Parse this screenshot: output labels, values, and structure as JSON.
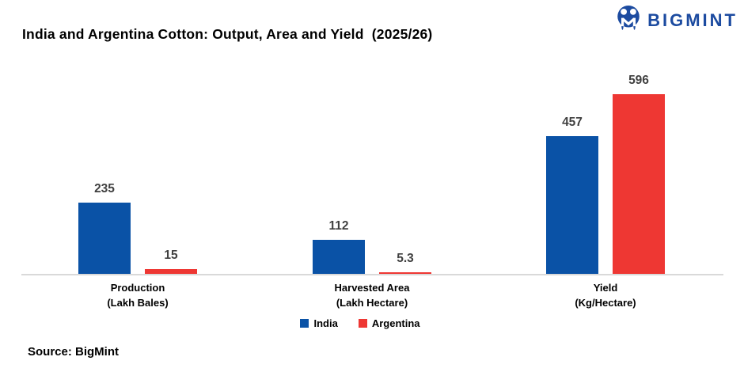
{
  "header": {
    "title": "India and Argentina Cotton: Output, Area and Yield  (2025/26)",
    "logo_text": "BIGMINT"
  },
  "colors": {
    "india_blue": "#0a52a6",
    "argentina_red": "#ee3733",
    "logo_blue": "#1c4ba0",
    "axis_line_gray": "#d9d9d9",
    "value_label_gray": "#404040"
  },
  "chart_data": {
    "type": "bar",
    "title": "India and Argentina Cotton: Output, Area and Yield  (2025/26)",
    "categories": [
      [
        "Production",
        "(Lakh Bales)"
      ],
      [
        "Harvested Area",
        "(Lakh Hectare)"
      ],
      [
        "Yield",
        "(Kg/Hectare)"
      ]
    ],
    "series": [
      {
        "name": "India",
        "color": "#0a52a6",
        "values": [
          235,
          112,
          457
        ],
        "labels": [
          "235",
          "112",
          "457"
        ]
      },
      {
        "name": "Argentina",
        "color": "#ee3733",
        "values": [
          15,
          5.3,
          596
        ],
        "labels": [
          "15",
          "5.3",
          "596"
        ]
      }
    ],
    "ylim": [
      0,
      596
    ],
    "grid": false,
    "y_axis_shown": false,
    "data_labels": "above bars",
    "legend_position": "bottom-center"
  },
  "legend": {
    "items": [
      {
        "label": "India",
        "color": "#0a52a6"
      },
      {
        "label": "Argentina",
        "color": "#ee3733"
      }
    ]
  },
  "footer": {
    "source": "Source: BigMint"
  }
}
